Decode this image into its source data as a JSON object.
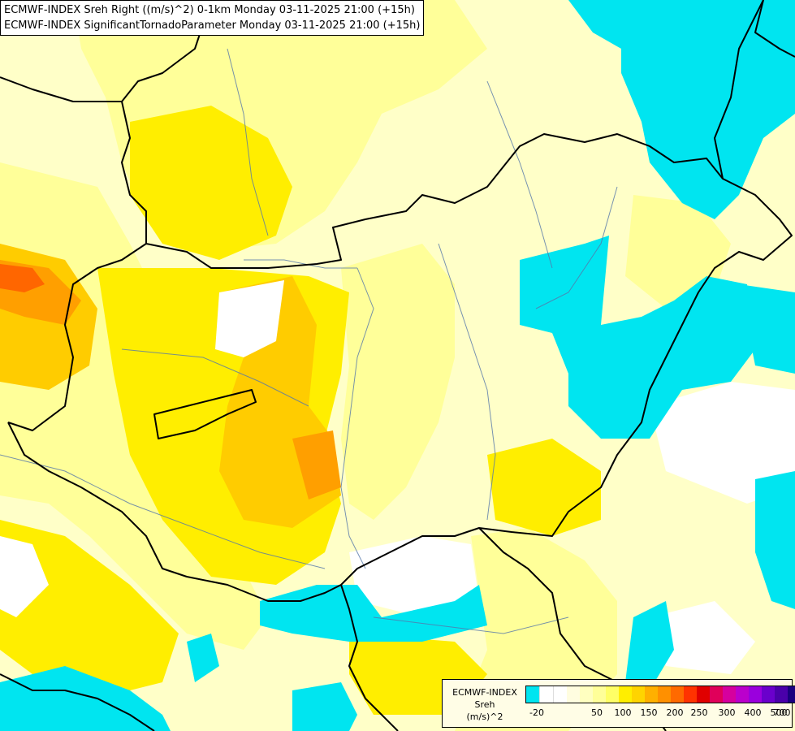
{
  "titles": {
    "line1": "ECMWF-INDEX Sreh Right ((m/s)^2) 0-1km Monday 03-11-2025 21:00 (+15h)",
    "line2": "ECMWF-INDEX SignificantTornadoParameter Monday 03-11-2025 21:00 (+15h)"
  },
  "legend": {
    "line1": "ECMWF-INDEX",
    "line2": "Sreh",
    "line3": "(m/s)^2",
    "colors": [
      "#00e5f0",
      "#ffffff",
      "#ffffff",
      "#fffde0",
      "#ffffc0",
      "#ffff99",
      "#ffff66",
      "#ffee00",
      "#ffd400",
      "#ffb000",
      "#ff9000",
      "#ff6a00",
      "#ff3300",
      "#e00000",
      "#e0005a",
      "#d6009e",
      "#bb00cc",
      "#9a00dd",
      "#6a00cc",
      "#4a00aa",
      "#1a0080"
    ],
    "tick_labels": [
      "-20",
      "50",
      "100",
      "150",
      "200",
      "250",
      "300",
      "400",
      "500",
      "700"
    ]
  },
  "colors": {
    "cyan": "#00e5f0",
    "pale": "#ffffc8",
    "light_yellow": "#ffff99",
    "yellow": "#ffee00",
    "gold": "#ffcc00",
    "orange": "#ff9f00",
    "deep_orange": "#ff6600",
    "red": "#ff3300",
    "border": "#000000",
    "river": "#5577aa"
  }
}
